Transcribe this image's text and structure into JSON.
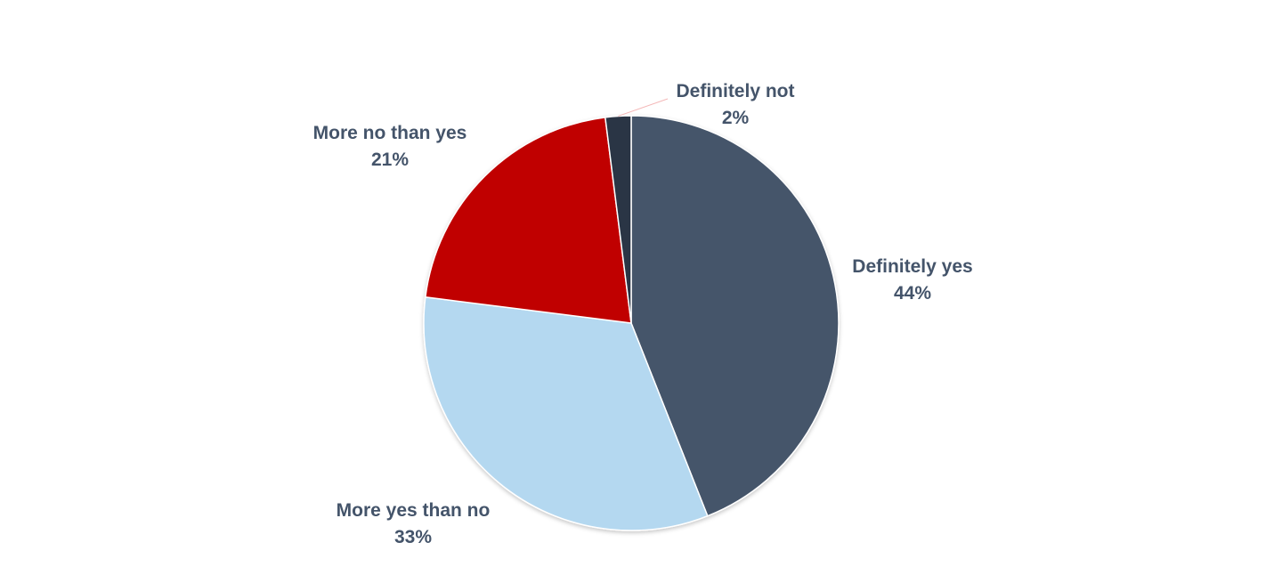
{
  "chart_data": {
    "type": "pie",
    "title": "",
    "start_angle_deg": 0,
    "direction": "clockwise",
    "slices": [
      {
        "label": "Definitely yes",
        "value": 44,
        "value_label": "44%",
        "color": "#44546a"
      },
      {
        "label": "More yes than no",
        "value": 33,
        "value_label": "33%",
        "color": "#b4d8f0"
      },
      {
        "label": "More no than yes",
        "value": 21,
        "value_label": "21%",
        "color": "#c00000"
      },
      {
        "label": "Definitely not",
        "value": 2,
        "value_label": "2%",
        "color": "#2b3444"
      }
    ],
    "label_color": "#44546a",
    "leader_line_color": "#f4b8b8",
    "legend": "none"
  }
}
